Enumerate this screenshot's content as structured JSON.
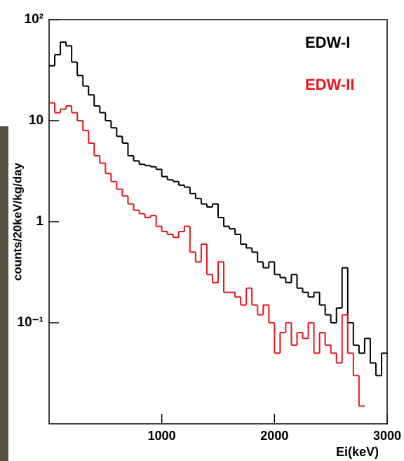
{
  "chart_data": {
    "type": "histogram",
    "y_label": "counts/20keV/kg/day",
    "x_label": "Ei(keV)",
    "log_y": true,
    "legend": "top-right",
    "bins": [
      0,
      50,
      100,
      150,
      200,
      250,
      300,
      350,
      400,
      450,
      500,
      550,
      600,
      650,
      700,
      750,
      800,
      850,
      900,
      950,
      1000,
      1050,
      1100,
      1150,
      1200,
      1250,
      1300,
      1350,
      1400,
      1450,
      1500,
      1550,
      1600,
      1650,
      1700,
      1750,
      1800,
      1850,
      1900,
      1950,
      2000,
      2050,
      2100,
      2150,
      2200,
      2250,
      2300,
      2350,
      2400,
      2450,
      2500,
      2550,
      2600,
      2650,
      2700,
      2750,
      2800,
      2850,
      2900,
      2950,
      3000
    ],
    "series": [
      {
        "name": "EDW-I",
        "color": "#000000",
        "values": [
          35,
          45,
          60,
          55,
          38,
          28,
          22,
          18,
          14,
          12,
          10,
          8.5,
          7,
          6,
          4.5,
          4,
          3.7,
          3.6,
          3.5,
          3.3,
          2.8,
          2.6,
          2.5,
          2.3,
          2.2,
          1.9,
          1.7,
          1.5,
          1.4,
          1.5,
          1.1,
          0.9,
          0.85,
          0.75,
          0.6,
          0.55,
          0.5,
          0.4,
          0.35,
          0.4,
          0.3,
          0.28,
          0.25,
          0.3,
          0.22,
          0.2,
          0.18,
          0.2,
          0.15,
          0.12,
          0.1,
          0.14,
          0.35,
          0.1,
          0.06,
          0.05,
          0.07,
          0.04,
          0.03,
          0.05
        ]
      },
      {
        "name": "EDW-II",
        "color": "#e8141c",
        "values": [
          15,
          12,
          13,
          14,
          12,
          10,
          8,
          6,
          4.5,
          3.8,
          3,
          2.5,
          2.1,
          1.8,
          1.5,
          1.3,
          1.2,
          1.1,
          1.15,
          0.9,
          0.8,
          0.75,
          0.7,
          0.8,
          0.9,
          0.5,
          0.4,
          0.6,
          0.3,
          0.25,
          0.4,
          0.2,
          0.2,
          0.18,
          0.15,
          0.22,
          0.15,
          0.12,
          0.15,
          0.1,
          0.05,
          0.08,
          0.1,
          0.06,
          0.08,
          0.07,
          0.1,
          0.05,
          0.08,
          0.06,
          0.05,
          0.04,
          0.12,
          0.05,
          0.03,
          0.015,
          null,
          null,
          null,
          null
        ]
      }
    ],
    "xlim": [
      0,
      3000
    ],
    "ylim": [
      0.01,
      100
    ],
    "xticks": [
      1000,
      2000,
      3000
    ],
    "yticks": [
      {
        "value": 0.1,
        "label": "10⁻¹"
      },
      1,
      10,
      {
        "value": 100,
        "label": "10²"
      }
    ]
  }
}
